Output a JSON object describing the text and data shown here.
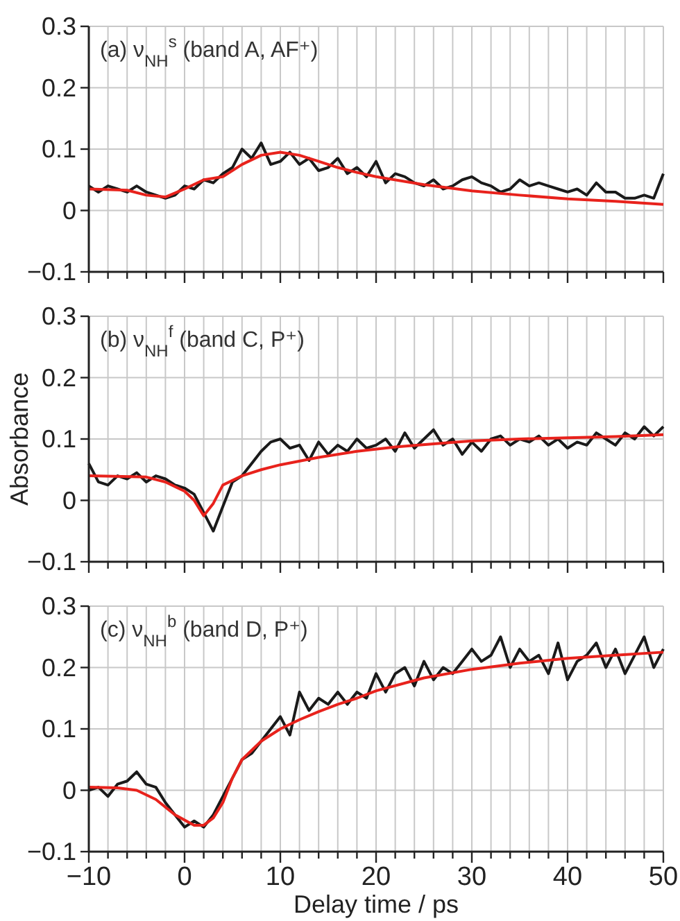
{
  "chart_data": [
    {
      "type": "line",
      "title": "(a) ν$_{NH}$$^{s}$ (band A, AF⁺)",
      "xlim": [
        -10,
        50
      ],
      "ylim": [
        -0.1,
        0.3
      ],
      "yticks": [
        -0.1,
        0,
        0.1,
        0.2,
        0.3
      ],
      "xticks": [
        -10,
        {
          "value": -8,
          "label": null
        },
        {
          "value": -6,
          "label": null
        },
        {
          "value": -4,
          "label": null
        },
        {
          "value": -2,
          "label": null
        },
        0,
        {
          "value": 2,
          "label": null
        },
        {
          "value": 4,
          "label": null
        },
        {
          "value": 6,
          "label": null
        },
        {
          "value": 8,
          "label": null
        },
        10,
        {
          "value": 12,
          "label": null
        },
        {
          "value": 14,
          "label": null
        },
        {
          "value": 16,
          "label": null
        },
        {
          "value": 18,
          "label": null
        },
        20,
        {
          "value": 22,
          "label": null
        },
        {
          "value": 24,
          "label": null
        },
        {
          "value": 26,
          "label": null
        },
        {
          "value": 28,
          "label": null
        },
        30,
        {
          "value": 32,
          "label": null
        },
        {
          "value": 34,
          "label": null
        },
        {
          "value": 36,
          "label": null
        },
        {
          "value": 38,
          "label": null
        },
        40,
        {
          "value": 42,
          "label": null
        },
        {
          "value": 44,
          "label": null
        },
        {
          "value": 46,
          "label": null
        },
        {
          "value": 48,
          "label": null
        },
        50
      ],
      "tick_labels": "y",
      "grid": true,
      "line_style": "solid",
      "series": [
        {
          "color": "#1a1a1a",
          "x": [
            -10,
            -9,
            -8,
            -7,
            -6,
            -5,
            -4,
            -3,
            -2,
            -1,
            0,
            1,
            2,
            3,
            4,
            5,
            6,
            7,
            8,
            9,
            10,
            11,
            12,
            13,
            14,
            15,
            16,
            17,
            18,
            19,
            20,
            21,
            22,
            23,
            24,
            25,
            26,
            27,
            28,
            29,
            30,
            31,
            32,
            33,
            34,
            35,
            36,
            37,
            38,
            39,
            40,
            41,
            42,
            43,
            44,
            45,
            46,
            47,
            48,
            49,
            50
          ],
          "values": [
            0.04,
            0.03,
            0.04,
            0.035,
            0.03,
            0.04,
            0.03,
            0.025,
            0.02,
            0.025,
            0.04,
            0.035,
            0.05,
            0.045,
            0.06,
            0.07,
            0.1,
            0.085,
            0.11,
            0.075,
            0.08,
            0.095,
            0.075,
            0.085,
            0.065,
            0.07,
            0.085,
            0.06,
            0.07,
            0.055,
            0.08,
            0.045,
            0.06,
            0.055,
            0.045,
            0.04,
            0.05,
            0.035,
            0.04,
            0.05,
            0.055,
            0.045,
            0.04,
            0.03,
            0.035,
            0.05,
            0.04,
            0.045,
            0.04,
            0.035,
            0.03,
            0.035,
            0.025,
            0.045,
            0.03,
            0.03,
            0.02,
            0.02,
            0.025,
            0.02,
            0.06
          ]
        },
        {
          "color": "#e8221c",
          "x": [
            -10,
            -6,
            -4,
            -2,
            0,
            2,
            4,
            6,
            8,
            10,
            12,
            14,
            16,
            18,
            20,
            25,
            30,
            35,
            40,
            45,
            50
          ],
          "values": [
            0.035,
            0.033,
            0.025,
            0.022,
            0.035,
            0.05,
            0.055,
            0.075,
            0.09,
            0.095,
            0.09,
            0.08,
            0.07,
            0.062,
            0.055,
            0.042,
            0.032,
            0.025,
            0.019,
            0.015,
            0.01
          ]
        }
      ]
    },
    {
      "type": "line",
      "title": "(b) ν$_{NH}$$^{f}$ (band C, P⁺)",
      "ylabel": "Absorbance",
      "xlim": [
        -10,
        50
      ],
      "ylim": [
        -0.1,
        0.3
      ],
      "yticks": [
        -0.1,
        0,
        0.1,
        0.2,
        0.3
      ],
      "xticks": [
        -10,
        {
          "value": -8,
          "label": null
        },
        {
          "value": -6,
          "label": null
        },
        {
          "value": -4,
          "label": null
        },
        {
          "value": -2,
          "label": null
        },
        0,
        {
          "value": 2,
          "label": null
        },
        {
          "value": 4,
          "label": null
        },
        {
          "value": 6,
          "label": null
        },
        {
          "value": 8,
          "label": null
        },
        10,
        {
          "value": 12,
          "label": null
        },
        {
          "value": 14,
          "label": null
        },
        {
          "value": 16,
          "label": null
        },
        {
          "value": 18,
          "label": null
        },
        20,
        {
          "value": 22,
          "label": null
        },
        {
          "value": 24,
          "label": null
        },
        {
          "value": 26,
          "label": null
        },
        {
          "value": 28,
          "label": null
        },
        30,
        {
          "value": 32,
          "label": null
        },
        {
          "value": 34,
          "label": null
        },
        {
          "value": 36,
          "label": null
        },
        {
          "value": 38,
          "label": null
        },
        40,
        {
          "value": 42,
          "label": null
        },
        {
          "value": 44,
          "label": null
        },
        {
          "value": 46,
          "label": null
        },
        {
          "value": 48,
          "label": null
        },
        50
      ],
      "tick_labels": "y",
      "grid": true,
      "line_style": "solid",
      "series": [
        {
          "color": "#1a1a1a",
          "x": [
            -10,
            -9,
            -8,
            -7,
            -6,
            -5,
            -4,
            -3,
            -2,
            -1,
            0,
            1,
            2,
            3,
            4,
            5,
            6,
            7,
            8,
            9,
            10,
            11,
            12,
            13,
            14,
            15,
            16,
            17,
            18,
            19,
            20,
            21,
            22,
            23,
            24,
            25,
            26,
            27,
            28,
            29,
            30,
            31,
            32,
            33,
            34,
            35,
            36,
            37,
            38,
            39,
            40,
            41,
            42,
            43,
            44,
            45,
            46,
            47,
            48,
            49,
            50
          ],
          "values": [
            0.06,
            0.03,
            0.025,
            0.04,
            0.035,
            0.045,
            0.03,
            0.04,
            0.035,
            0.025,
            0.02,
            0.01,
            -0.02,
            -0.05,
            -0.01,
            0.03,
            0.04,
            0.06,
            0.08,
            0.095,
            0.1,
            0.085,
            0.09,
            0.065,
            0.095,
            0.075,
            0.09,
            0.08,
            0.1,
            0.085,
            0.09,
            0.1,
            0.08,
            0.11,
            0.085,
            0.1,
            0.115,
            0.09,
            0.1,
            0.075,
            0.095,
            0.08,
            0.1,
            0.105,
            0.09,
            0.1,
            0.095,
            0.105,
            0.09,
            0.1,
            0.085,
            0.095,
            0.09,
            0.11,
            0.1,
            0.09,
            0.11,
            0.1,
            0.12,
            0.105,
            0.12
          ]
        },
        {
          "color": "#e8221c",
          "x": [
            -10,
            -4,
            -2,
            0,
            1,
            2,
            3,
            4,
            6,
            8,
            10,
            14,
            18,
            22,
            26,
            30,
            35,
            40,
            45,
            50
          ],
          "values": [
            0.04,
            0.038,
            0.03,
            0.015,
            0.0,
            -0.025,
            -0.005,
            0.025,
            0.04,
            0.05,
            0.058,
            0.07,
            0.08,
            0.087,
            0.092,
            0.097,
            0.1,
            0.102,
            0.104,
            0.107
          ]
        }
      ]
    },
    {
      "type": "line",
      "title": "(c) ν$_{NH}$$^{b}$ (band D, P⁺)",
      "xlabel": "Delay time / ps",
      "xlim": [
        -10,
        50
      ],
      "ylim": [
        -0.1,
        0.3
      ],
      "yticks": [
        -0.1,
        0,
        0.1,
        0.2,
        0.3
      ],
      "xticks": [
        {
          "value": -10,
          "label": "−10"
        },
        {
          "value": -8,
          "label": null
        },
        {
          "value": -6,
          "label": null
        },
        {
          "value": -4,
          "label": null
        },
        {
          "value": -2,
          "label": null
        },
        0,
        {
          "value": 2,
          "label": null
        },
        {
          "value": 4,
          "label": null
        },
        {
          "value": 6,
          "label": null
        },
        {
          "value": 8,
          "label": null
        },
        10,
        {
          "value": 12,
          "label": null
        },
        {
          "value": 14,
          "label": null
        },
        {
          "value": 16,
          "label": null
        },
        {
          "value": 18,
          "label": null
        },
        20,
        {
          "value": 22,
          "label": null
        },
        {
          "value": 24,
          "label": null
        },
        {
          "value": 26,
          "label": null
        },
        {
          "value": 28,
          "label": null
        },
        30,
        {
          "value": 32,
          "label": null
        },
        {
          "value": 34,
          "label": null
        },
        {
          "value": 36,
          "label": null
        },
        {
          "value": 38,
          "label": null
        },
        40,
        {
          "value": 42,
          "label": null
        },
        {
          "value": 44,
          "label": null
        },
        {
          "value": 46,
          "label": null
        },
        {
          "value": 48,
          "label": null
        },
        50
      ],
      "grid": true,
      "line_style": "solid",
      "series": [
        {
          "color": "#1a1a1a",
          "x": [
            -10,
            -9,
            -8,
            -7,
            -6,
            -5,
            -4,
            -3,
            -2,
            -1,
            0,
            1,
            2,
            3,
            4,
            5,
            6,
            7,
            8,
            9,
            10,
            11,
            12,
            13,
            14,
            15,
            16,
            17,
            18,
            19,
            20,
            21,
            22,
            23,
            24,
            25,
            26,
            27,
            28,
            29,
            30,
            31,
            32,
            33,
            34,
            35,
            36,
            37,
            38,
            39,
            40,
            41,
            42,
            43,
            44,
            45,
            46,
            47,
            48,
            49,
            50
          ],
          "values": [
            0.0,
            0.005,
            -0.01,
            0.01,
            0.015,
            0.03,
            0.01,
            0.005,
            -0.02,
            -0.04,
            -0.06,
            -0.05,
            -0.06,
            -0.04,
            -0.01,
            0.02,
            0.05,
            0.06,
            0.08,
            0.1,
            0.12,
            0.09,
            0.16,
            0.13,
            0.15,
            0.14,
            0.16,
            0.14,
            0.16,
            0.15,
            0.19,
            0.16,
            0.19,
            0.2,
            0.17,
            0.21,
            0.18,
            0.2,
            0.19,
            0.21,
            0.23,
            0.21,
            0.22,
            0.25,
            0.2,
            0.23,
            0.21,
            0.22,
            0.19,
            0.24,
            0.18,
            0.21,
            0.22,
            0.24,
            0.2,
            0.23,
            0.19,
            0.22,
            0.25,
            0.2,
            0.23
          ]
        },
        {
          "color": "#e8221c",
          "x": [
            -10,
            -7,
            -5,
            -3,
            -1,
            1,
            2,
            3,
            4,
            5,
            6,
            8,
            10,
            12,
            14,
            16,
            18,
            20,
            25,
            30,
            35,
            40,
            45,
            50
          ],
          "values": [
            0.005,
            0.004,
            0.0,
            -0.015,
            -0.04,
            -0.057,
            -0.057,
            -0.045,
            -0.02,
            0.02,
            0.05,
            0.08,
            0.1,
            0.115,
            0.128,
            0.14,
            0.15,
            0.162,
            0.183,
            0.197,
            0.207,
            0.215,
            0.22,
            0.225
          ]
        }
      ]
    }
  ]
}
